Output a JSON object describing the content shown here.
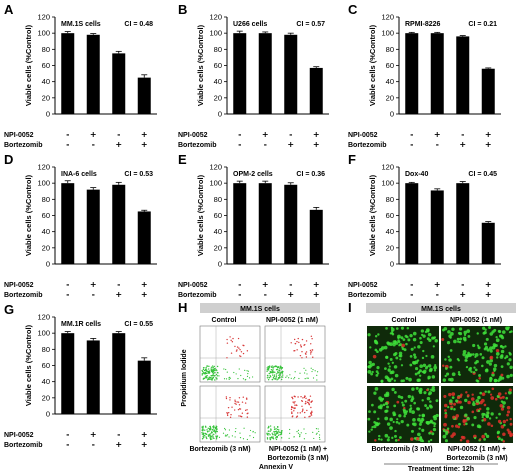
{
  "chart_data": [
    {
      "type": "bar",
      "panel": "A",
      "cell_line": "MM.1S cells",
      "ci": "CI = 0.48",
      "ylabel": "Viable cells (%Control)",
      "ylim": [
        0,
        120
      ],
      "yticks": [
        0,
        20,
        40,
        60,
        80,
        100,
        120
      ],
      "categories": [
        "Control",
        "NPI-0052",
        "Bortezomib",
        "NPI-0052 + Bortezomib"
      ],
      "values": [
        100,
        98,
        75,
        45
      ],
      "errors": [
        2,
        1.5,
        2.5,
        3.5
      ],
      "npi_row": [
        "-",
        "+",
        "-",
        "+"
      ],
      "bort_row": [
        "-",
        "-",
        "+",
        "+"
      ]
    },
    {
      "type": "bar",
      "panel": "B",
      "cell_line": "U266 cells",
      "ci": "CI = 0.57",
      "ylabel": "Viable cells (%Control)",
      "ylim": [
        0,
        120
      ],
      "yticks": [
        0,
        20,
        40,
        60,
        80,
        100,
        120
      ],
      "categories": [
        "Control",
        "NPI-0052",
        "Bortezomib",
        "NPI-0052 + Bortezomib"
      ],
      "values": [
        100,
        100,
        98,
        57
      ],
      "errors": [
        2.5,
        1.5,
        2,
        1.5
      ],
      "npi_row": [
        "-",
        "+",
        "-",
        "+"
      ],
      "bort_row": [
        "-",
        "-",
        "+",
        "+"
      ]
    },
    {
      "type": "bar",
      "panel": "C",
      "cell_line": "RPMI-8226",
      "ci": "CI = 0.21",
      "ylabel": "Viable cells (%Control)",
      "ylim": [
        0,
        120
      ],
      "yticks": [
        0,
        20,
        40,
        60,
        80,
        100,
        120
      ],
      "categories": [
        "Control",
        "NPI-0052",
        "Bortezomib",
        "NPI-0052 + Bortezomib"
      ],
      "values": [
        100,
        100,
        96,
        56
      ],
      "errors": [
        1,
        1,
        1,
        1
      ],
      "npi_row": [
        "-",
        "+",
        "-",
        "+"
      ],
      "bort_row": [
        "-",
        "-",
        "+",
        "+"
      ]
    },
    {
      "type": "bar",
      "panel": "D",
      "cell_line": "INA-6 cells",
      "ci": "CI = 0.53",
      "ylabel": "Viable cells (%Control)",
      "ylim": [
        0,
        120
      ],
      "yticks": [
        0,
        20,
        40,
        60,
        80,
        100,
        120
      ],
      "categories": [
        "Control",
        "NPI-0052",
        "Bortezomib",
        "NPI-0052 + Bortezomib"
      ],
      "values": [
        100,
        92,
        98,
        65
      ],
      "errors": [
        3,
        2.5,
        3,
        1.5
      ],
      "npi_row": [
        "-",
        "+",
        "-",
        "+"
      ],
      "bort_row": [
        "-",
        "-",
        "+",
        "+"
      ]
    },
    {
      "type": "bar",
      "panel": "E",
      "cell_line": "OPM-2 cells",
      "ci": "CI = 0.36",
      "ylabel": "Viable cells (%Control)",
      "ylim": [
        0,
        120
      ],
      "yticks": [
        0,
        20,
        40,
        60,
        80,
        100,
        120
      ],
      "categories": [
        "Control",
        "NPI-0052",
        "Bortezomib",
        "NPI-0052 + Bortezomib"
      ],
      "values": [
        100,
        100,
        98,
        67
      ],
      "errors": [
        2.5,
        2.5,
        2.5,
        3
      ],
      "npi_row": [
        "-",
        "+",
        "-",
        "+"
      ],
      "bort_row": [
        "-",
        "-",
        "+",
        "+"
      ]
    },
    {
      "type": "bar",
      "panel": "F",
      "cell_line": "Dox-40",
      "ci": "CI = 0.45",
      "ylabel": "Viable cells (%Control)",
      "ylim": [
        0,
        120
      ],
      "yticks": [
        0,
        20,
        40,
        60,
        80,
        100,
        120
      ],
      "categories": [
        "Control",
        "NPI-0052",
        "Bortezomib",
        "NPI-0052 + Bortezomib"
      ],
      "values": [
        100,
        91,
        100,
        51
      ],
      "errors": [
        1,
        2,
        2,
        1.5
      ],
      "npi_row": [
        "-",
        "+",
        "-",
        "+"
      ],
      "bort_row": [
        "-",
        "-",
        "+",
        "+"
      ]
    },
    {
      "type": "bar",
      "panel": "G",
      "cell_line": "MM.1R cells",
      "ci": "CI = 0.55",
      "ylabel": "Viable cells (%Control)",
      "ylim": [
        0,
        120
      ],
      "yticks": [
        0,
        20,
        40,
        60,
        80,
        100,
        120
      ],
      "categories": [
        "Control",
        "NPI-0052",
        "Bortezomib",
        "NPI-0052 + Bortezomib"
      ],
      "values": [
        100,
        91,
        100,
        66
      ],
      "errors": [
        2,
        2.5,
        2,
        3.5
      ],
      "npi_row": [
        "-",
        "+",
        "-",
        "+"
      ],
      "bort_row": [
        "-",
        "-",
        "+",
        "+"
      ]
    }
  ],
  "row_labels": {
    "npi": "NPI-0052",
    "bortezomib": "Bortezomib"
  },
  "panel_H": {
    "letter": "H",
    "title": "MM.1S cells",
    "col_labels": [
      "Control",
      "NPI-0052 (1 nM)"
    ],
    "bottom_labels": [
      "Bortezomib (3 nM)",
      "NPI-0052 (1 nM) +\nBortezomib (3 nM)"
    ],
    "ylabel": "Propidium Iodide",
    "xlabel": "Annexin V"
  },
  "panel_I": {
    "letter": "I",
    "title": "MM.1S cells",
    "col_labels": [
      "Control",
      "NPI-0052 (1 nM)"
    ],
    "bottom_labels": [
      "Bortezomib (3 nM)",
      "NPI-0052 (1 nM) +\nBortezomib (3 nM)"
    ],
    "footer": "Treatment time: 12h"
  },
  "colors": {
    "bar": "#000000",
    "micro_bg": "#0f2a0a",
    "micro_live": "#3ee03a",
    "micro_dead": "#e0302a",
    "facs_live": "#36c23a",
    "facs_dead": "#d83a3a"
  }
}
